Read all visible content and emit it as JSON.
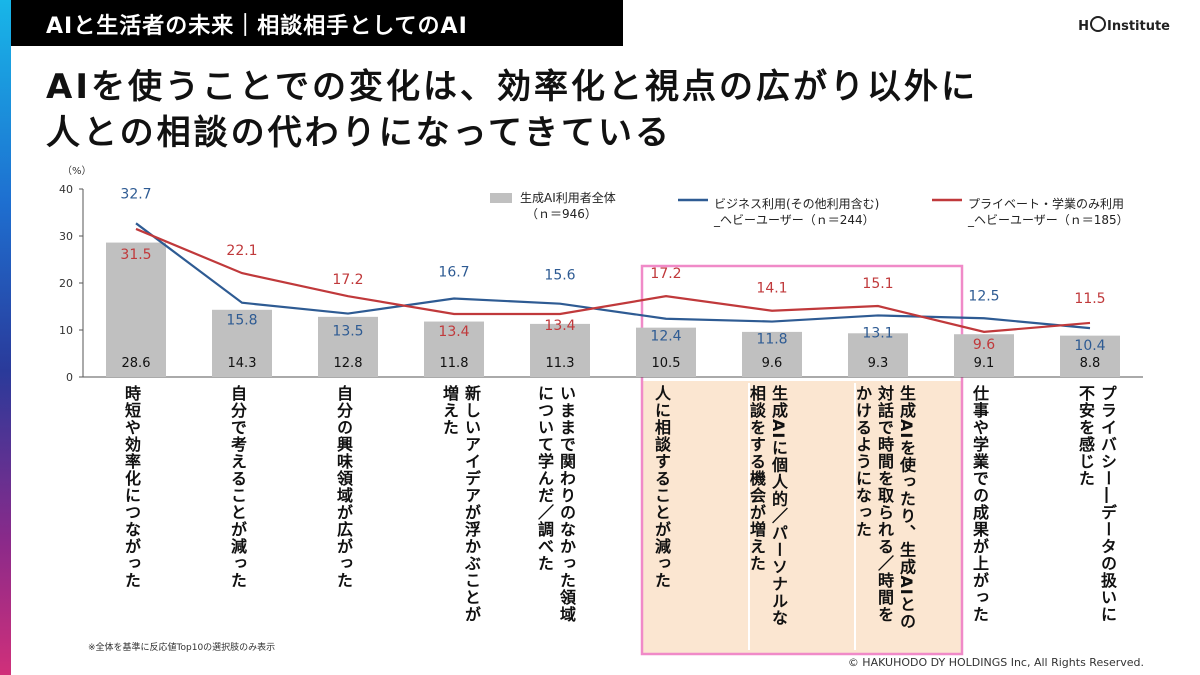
{
  "header": {
    "title": "AIと生活者の未来｜相談相手としてのAI",
    "logo_text_left": "H",
    "logo_text_right": "Institute"
  },
  "headline": {
    "line1": "AIを使うことでの変化は、効率化と視点の広がり以外に",
    "line2": "人との相談の代わりになってきている"
  },
  "footnote": "※全体を基準に反応値Top10の選択肢のみ表示",
  "copyright": "© HAKUHODO DY HOLDINGS Inc, All Rights Reserved.",
  "colors": {
    "bar": "#c0c0c0",
    "business_line": "#2e5b93",
    "private_line": "#c0393b",
    "highlight_fill": "#fbe6d1",
    "highlight_border": "#f08ac8"
  },
  "chart_data": {
    "type": "bar",
    "y_unit": "（%）",
    "ylim": [
      0,
      40
    ],
    "yticks": [
      0,
      10,
      20,
      30,
      40
    ],
    "categories": [
      "時短や効率化につながった",
      "自分で考えることが減った",
      "自分の興味領域が広がった",
      "新しいアイデアが浮かぶことが増えた",
      "いままで関わりのなかった領域について学んだ／調べた",
      "人に相談することが減った",
      "生成AIに個人的／パーソナルな相談をする機会が増えた",
      "生成AIを使ったり、生成AIとの対話で時間を取られる／時間をかけるようになった",
      "仕事や学業での成果が上がった",
      "プライバシー―データの扱いに不安を感じた"
    ],
    "highlighted_indices": [
      5,
      6,
      7
    ],
    "series": [
      {
        "name": "生成AI利用者全体（ｎ＝946）",
        "legend_line1": "生成AI利用者全体",
        "legend_line2": "（ｎ＝946）",
        "kind": "bar",
        "values": [
          28.6,
          14.3,
          12.8,
          11.8,
          11.3,
          10.5,
          9.6,
          9.3,
          9.1,
          8.8
        ],
        "labels": [
          "28.6",
          "14.3",
          "12.8",
          "11.8",
          "11.3",
          "10.5",
          "9.6",
          "9.3",
          "9.1",
          "8.8"
        ]
      },
      {
        "name": "ビジネス利用(その他利用含む)_ヘビーユーザー（ｎ＝244）",
        "legend_line1": "ビジネス利用(その他利用含む)",
        "legend_line2": "_ヘビーユーザー（ｎ＝244）",
        "kind": "line",
        "values": [
          32.7,
          15.8,
          13.5,
          16.7,
          15.6,
          12.4,
          11.8,
          13.1,
          12.5,
          10.4
        ],
        "labels": [
          "32.7",
          "15.8",
          "13.5",
          "",
          "15.6",
          "12.4",
          "11.8",
          "13.1",
          "12.5",
          "10.4"
        ],
        "extra_label": "16.7"
      },
      {
        "name": "プライベート・学業のみ利用_ヘビーユーザー（ｎ＝185）",
        "legend_line1": "プライベート・学業のみ利用",
        "legend_line2": "_ヘビーユーザー（ｎ＝185）",
        "kind": "line",
        "values": [
          31.5,
          22.1,
          17.2,
          13.4,
          13.4,
          17.2,
          14.1,
          15.1,
          9.6,
          11.5
        ],
        "labels": [
          "31.5",
          "22.1",
          "17.2",
          "13.4",
          "13.4",
          "17.2",
          "14.1",
          "15.1",
          "9.6",
          "11.5"
        ]
      }
    ]
  }
}
